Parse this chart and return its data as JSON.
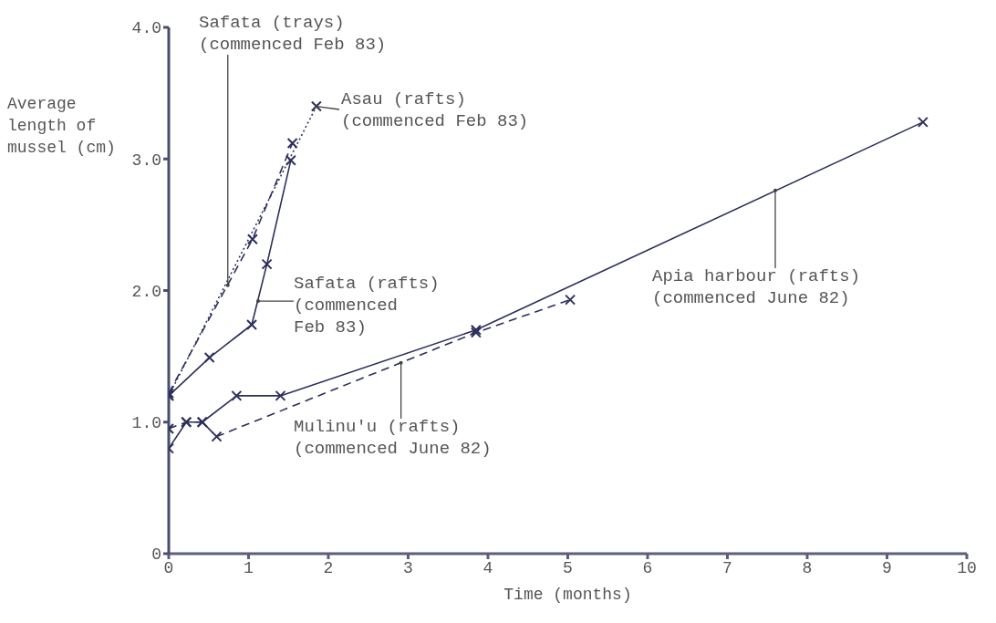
{
  "chart_data": {
    "type": "line",
    "xlabel": "Time (months)",
    "ylabel": "Average length of mussel (cm)",
    "xlim": [
      0,
      10
    ],
    "ylim": [
      0,
      4
    ],
    "xticks": [
      0,
      1,
      2,
      3,
      4,
      5,
      6,
      7,
      8,
      9,
      10
    ],
    "yticks": [
      0,
      {
        "value": 1,
        "label": "1.0"
      },
      {
        "value": 2,
        "label": "2.0"
      },
      {
        "value": 3,
        "label": "3.0"
      },
      {
        "value": 4,
        "label": "4.0"
      }
    ],
    "grid": false,
    "marker": "cross",
    "series": [
      {
        "color": "#2b2f5c",
        "line_style": "solid",
        "x": [
          0,
          0.22,
          0.42,
          0.85,
          1.4,
          3.85,
          9.45
        ],
        "values": [
          0.8,
          1.0,
          1.0,
          1.2,
          1.2,
          1.7,
          3.28
        ]
      },
      {
        "color": "#2b2f5c",
        "line_style": "dashed",
        "x": [
          0,
          0.22,
          0.42,
          0.6,
          3.85,
          5.03
        ],
        "values": [
          0.95,
          1.0,
          1.0,
          0.89,
          1.68,
          1.93
        ]
      },
      {
        "color": "#2b2f5c",
        "line_style": "dashed",
        "x": [
          0,
          1.05,
          1.55
        ],
        "values": [
          1.22,
          2.39,
          3.12
        ]
      },
      {
        "color": "#2b2f5c",
        "line_style": "solid",
        "x": [
          0,
          0.51,
          1.04,
          1.23,
          1.53
        ],
        "values": [
          1.2,
          1.49,
          1.74,
          2.2,
          2.99
        ]
      },
      {
        "color": "#2b2f5c",
        "line_style": "dotted",
        "x": [
          0,
          1.85
        ],
        "values": [
          1.2,
          3.4
        ]
      }
    ],
    "annotations": [
      {
        "text": "Safata (trays)\n(commenced Feb 83)",
        "x": 0.74,
        "y": 2.04
      },
      {
        "text": "Asau (rafts)\n(commenced Feb 83)",
        "x": 1.85,
        "y": 3.4
      },
      {
        "text": "Safata (rafts)\n(commenced\nFeb 83)",
        "x": 1.12,
        "y": 1.92
      },
      {
        "text": "Apia harbour (rafts)\n(commenced June 82)",
        "x": 7.6,
        "y": 2.76
      },
      {
        "text": "Mulinu'u (rafts)\n(commenced June 82)",
        "x": 2.91,
        "y": 1.45
      }
    ]
  }
}
